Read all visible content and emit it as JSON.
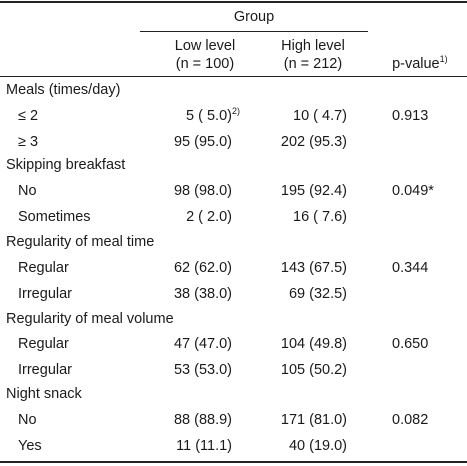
{
  "header": {
    "group_label": "Group",
    "low_label": "Low level",
    "low_n": "(n = 100)",
    "high_label": "High level",
    "high_n": "(n = 212)",
    "pvalue_label": "p-value",
    "pvalue_sup": "1)"
  },
  "sections": [
    {
      "title": "Meals (times/day)",
      "pvalue": "0.913",
      "rows": [
        {
          "label": "≤ 2",
          "low": "5 ( 5.0)",
          "low_sup": "2)",
          "high": "10 ( 4.7)"
        },
        {
          "label": "≥ 3",
          "low": "95 (95.0)",
          "low_sup": "",
          "high": "202 (95.3)"
        }
      ]
    },
    {
      "title": "Skipping breakfast",
      "pvalue": "0.049*",
      "rows": [
        {
          "label": "No",
          "low": "98 (98.0)",
          "low_sup": "",
          "high": "195 (92.4)"
        },
        {
          "label": "Sometimes",
          "low": "2 ( 2.0)",
          "low_sup": "",
          "high": "16 ( 7.6)"
        }
      ]
    },
    {
      "title": "Regularity of meal time",
      "pvalue": "0.344",
      "rows": [
        {
          "label": "Regular",
          "low": "62 (62.0)",
          "low_sup": "",
          "high": "143 (67.5)"
        },
        {
          "label": "Irregular",
          "low": "38 (38.0)",
          "low_sup": "",
          "high": "69 (32.5)"
        }
      ]
    },
    {
      "title": "Regularity of meal volume",
      "pvalue": "0.650",
      "rows": [
        {
          "label": "Regular",
          "low": "47 (47.0)",
          "low_sup": "",
          "high": "104 (49.8)"
        },
        {
          "label": "Irregular",
          "low": "53 (53.0)",
          "low_sup": "",
          "high": "105 (50.2)"
        }
      ]
    },
    {
      "title": "Night snack",
      "pvalue": "0.082",
      "rows": [
        {
          "label": "No",
          "low": "88 (88.9)",
          "low_sup": "",
          "high": "171 (81.0)"
        },
        {
          "label": "Yes",
          "low": "11 (11.1)",
          "low_sup": "",
          "high": "40 (19.0)"
        }
      ]
    }
  ]
}
